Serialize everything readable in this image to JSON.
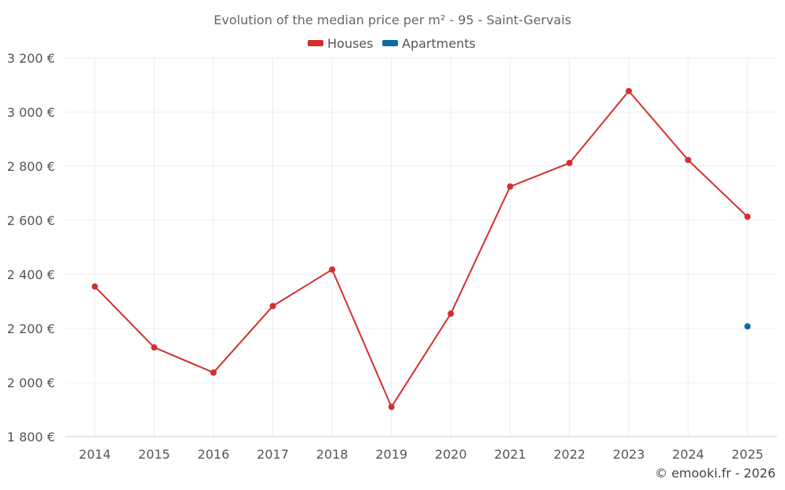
{
  "chart_data": {
    "type": "line",
    "title": "Evolution of the median price per m² - 95 - Saint-Gervais",
    "categories": [
      "2014",
      "2015",
      "2016",
      "2017",
      "2018",
      "2019",
      "2020",
      "2021",
      "2022",
      "2023",
      "2024",
      "2025"
    ],
    "series": [
      {
        "name": "Houses",
        "color": "#d32f2f",
        "values": [
          2355,
          2130,
          2037,
          2283,
          2418,
          1910,
          2255,
          2725,
          2812,
          3078,
          2823,
          2613
        ]
      },
      {
        "name": "Apartments",
        "color": "#0d6aa1",
        "values": [
          null,
          null,
          null,
          null,
          null,
          null,
          null,
          null,
          null,
          null,
          null,
          2208
        ]
      }
    ],
    "yticks": [
      "1 800 €",
      "2 000 €",
      "2 200 €",
      "2 400 €",
      "2 600 €",
      "2 800 €",
      "3 000 €",
      "3 200 €"
    ],
    "ytick_values": [
      1800,
      2000,
      2200,
      2400,
      2600,
      2800,
      3000,
      3200
    ],
    "ylim": [
      1800,
      3200
    ],
    "xlabel": "",
    "ylabel": "",
    "grid": true,
    "legend_position": "top-center"
  },
  "credit": "© emooki.fr - 2026"
}
